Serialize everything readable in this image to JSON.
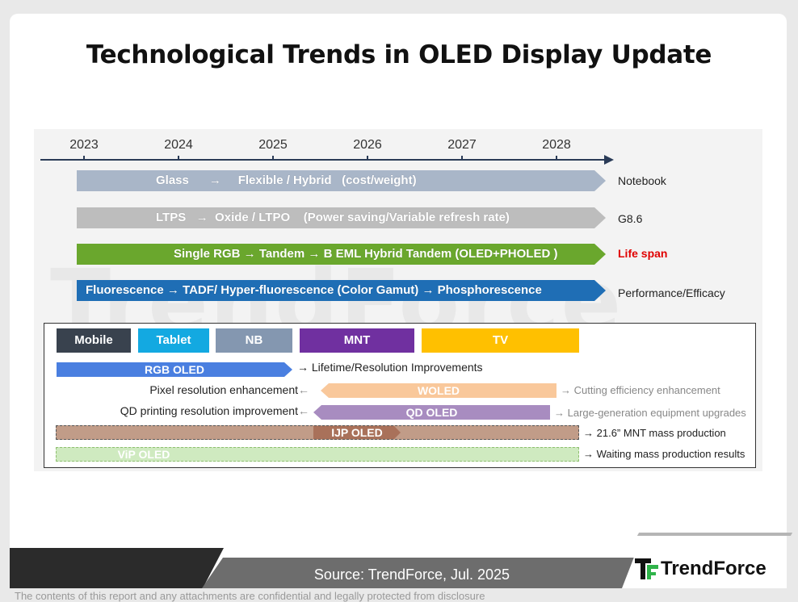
{
  "title": "Technological Trends in OLED Display Update",
  "timeline": {
    "years": [
      "2023",
      "2024",
      "2025",
      "2026",
      "2027",
      "2028"
    ]
  },
  "trends": [
    {
      "text": "Glass      →     Flexible / Hybrid   (cost/weight)",
      "label": "Notebook",
      "color": "#a9b6c8",
      "label_color": "#222222"
    },
    {
      "text": "LTPS   →  Oxide / LTPO    (Power saving/Variable refresh rate)",
      "label": "G8.6",
      "color": "#bdbdbd",
      "label_color": "#222222"
    },
    {
      "text": "Single RGB → Tandem → B EML Hybrid Tandem (OLED+PHOLED )",
      "label": "Life span",
      "color": "#6aa72d",
      "label_color": "#e00000"
    },
    {
      "text": "Fluorescence → TADF/ Hyper-fluorescence (Color Gamut) → Phosphorescence",
      "label": "Performance/Efficacy",
      "color": "#1f6eb5",
      "label_color": "#222222"
    }
  ],
  "devices": [
    {
      "name": "Mobile",
      "color": "#39424e"
    },
    {
      "name": "Tablet",
      "color": "#13a9e1"
    },
    {
      "name": "NB",
      "color": "#8497b0"
    },
    {
      "name": "MNT",
      "color": "#7030a0"
    },
    {
      "name": "TV",
      "color": "#ffc000"
    }
  ],
  "technologies": [
    {
      "name": "RGB OLED",
      "color": "#4a7fe0",
      "note_right": "→ Lifetime/Resolution Improvements"
    },
    {
      "name": "WOLED",
      "color": "#f9c89b",
      "note_left": "Pixel resolution enhancement",
      "note_right": "Cutting efficiency enhancement"
    },
    {
      "name": "QD OLED",
      "color": "#a88cc0",
      "note_left": "QD printing resolution improvement",
      "note_right": "Large-generation equipment upgrades"
    },
    {
      "name": "IJP OLED",
      "color": "#c19c88",
      "inner_color": "#a9715a",
      "note_right": "21.6” MNT mass production"
    },
    {
      "name": "ViP OLED",
      "color": "#cfeac0",
      "note_right": "Waiting mass production results"
    }
  ],
  "footer": {
    "source": "Source: TrendForce, Jul. 2025",
    "logo": "TrendForce",
    "watermark": "TrendForce",
    "disclaimer": "The contents of this report and any attachments are confidential and legally protected from disclosure"
  }
}
